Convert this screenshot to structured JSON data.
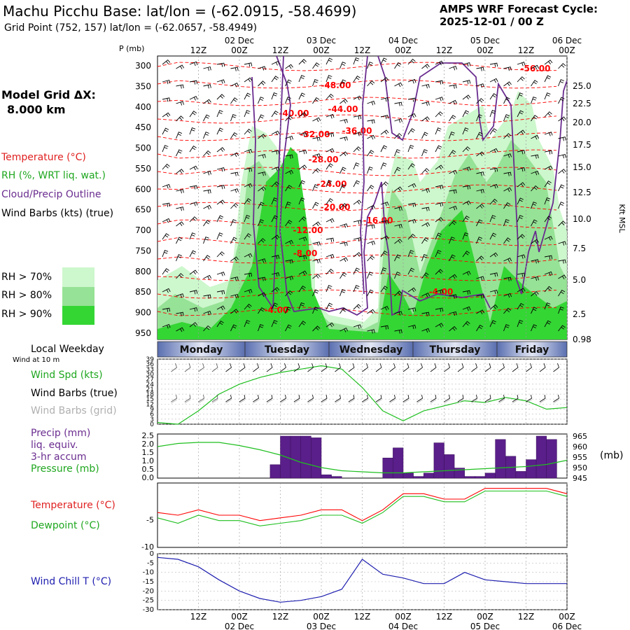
{
  "header": {
    "title": "Machu Picchu Base:  lat/lon = (-62.0915, -58.4699)",
    "grid_point": "Grid Point (752, 157) lat/lon = (-62.0657, -58.4949)",
    "cycle_label": "AMPS WRF Forecast Cycle:",
    "cycle_value": "2025-12-01 / 00  Z"
  },
  "left_panel": {
    "model_grid_label": "Model Grid ΔX:",
    "model_grid_value": "8.000 km",
    "temperature_label": "Temperature (°C)",
    "rh_label": "RH (%, WRT liq. wat.)",
    "cloud_label": "Cloud/Precip Outline",
    "wind_label": "Wind Barbs (kts) (true)",
    "rh_legend": [
      "RH > 70%",
      "RH > 80%",
      "RH > 90%"
    ],
    "local_weekday": "Local Weekday",
    "wind_at": "Wind at 10 m",
    "wind_spd_label": "Wind Spd (kts)",
    "wind_barbs_true": "Wind Barbs (true)",
    "wind_barbs_grid": "Wind Barbs (grid)",
    "precip_label": "Precip (mm)",
    "precip_sub1": "liq. equiv.",
    "precip_sub2": "3-hr accum",
    "pressure_label": "Pressure (mb)",
    "temp2_label": "Temperature (°C)",
    "dew_label": "Dewpoint (°C)",
    "windchill_label": "Wind Chill T (°C)"
  },
  "colors": {
    "rh70": "#cdf7cd",
    "rh80": "#96e296",
    "rh90": "#34d634",
    "temp": "#ff0000",
    "dew": "#1fbf1f",
    "cloud": "#6a2c8f",
    "precip": "#5a1f8a",
    "windchill": "#2020b0"
  },
  "chart_data": [
    {
      "type": "heatmap",
      "title": "Time-height cross section",
      "x_ticks_top": [
        "12Z",
        "00Z",
        "12Z",
        "00Z",
        "12Z",
        "00Z",
        "12Z",
        "00Z",
        "12Z",
        "00Z"
      ],
      "date_labels": [
        "02 Dec",
        "03 Dec",
        "04 Dec",
        "05 Dec",
        "06 Dec"
      ],
      "p_axis_label": "P (mb)",
      "p_ticks": [
        "300",
        "350",
        "400",
        "450",
        "500",
        "550",
        "600",
        "650",
        "700",
        "750",
        "800",
        "850",
        "900",
        "950"
      ],
      "kft_ticks": [
        "25.0",
        "22.5",
        "20.0",
        "17.5",
        "15.0",
        "12.5",
        "10.0",
        "7.5",
        "5.0",
        "2.5",
        "0.98"
      ],
      "kft_label": "Kft MSL",
      "isotherm_labels": [
        "-56.00",
        "-48.00",
        "-44.00",
        "-40.00",
        "-36.00",
        "-32.00",
        "-28.00",
        "-24.00",
        "-20.00",
        "-16.00",
        "-12.00",
        "-8.00",
        "-4.00",
        "-4.00"
      ]
    },
    {
      "type": "bar",
      "title": "Local Weekday",
      "categories": [
        "Monday",
        "Tuesday",
        "Wednesday",
        "Thursday",
        "Friday"
      ]
    },
    {
      "type": "line",
      "title": "Wind Spd (kts)",
      "y_ticks": [
        "39",
        "36",
        "33",
        "30",
        "27",
        "24",
        "21",
        "18",
        "15",
        "12",
        "9",
        "6",
        "3",
        "0"
      ],
      "ylim": [
        0,
        39
      ],
      "x_hours": [
        0,
        6,
        12,
        18,
        24,
        30,
        36,
        42,
        48,
        54,
        60,
        66,
        72,
        78,
        84,
        90,
        96,
        102,
        108,
        114,
        120
      ],
      "values": [
        1,
        0,
        8,
        18,
        24,
        28,
        31,
        33,
        35,
        33,
        22,
        8,
        2,
        8,
        11,
        14,
        13,
        16,
        14,
        9,
        10
      ]
    },
    {
      "type": "bar",
      "title": "Precip (mm) 3-hr accum / Pressure (mb)",
      "y_ticks": [
        "2.5",
        "2.0",
        "1.5",
        "1.0",
        "0.5",
        "0.0"
      ],
      "ylim": [
        0,
        2.5
      ],
      "y2_ticks": [
        "965",
        "960",
        "955",
        "950",
        "945"
      ],
      "y2lim": [
        945,
        965
      ],
      "y2_label": "(mb)",
      "precip_hours": [
        36,
        39,
        42,
        45,
        48,
        51,
        54,
        69,
        72,
        75,
        78,
        81,
        84,
        87,
        90,
        93,
        96,
        99,
        102,
        105,
        108,
        111,
        114,
        117
      ],
      "precip_values": [
        0.8,
        2.5,
        2.5,
        2.5,
        2.4,
        0.2,
        0.1,
        1.2,
        1.8,
        0.3,
        0.1,
        0.3,
        2.1,
        1.4,
        0.6,
        0.1,
        0.1,
        0.3,
        2.3,
        1.3,
        0.4,
        1.1,
        2.5,
        2.3
      ],
      "pressure_hours": [
        0,
        6,
        12,
        18,
        24,
        30,
        36,
        42,
        48,
        54,
        60,
        66,
        72,
        78,
        84,
        90,
        96,
        102,
        108,
        114,
        120
      ],
      "pressure_values": [
        960,
        961.5,
        962,
        962,
        960.5,
        958.5,
        956,
        952.5,
        950,
        948.5,
        948,
        947.5,
        947.5,
        948,
        948.5,
        949,
        949.5,
        950,
        950.5,
        951.5,
        953.5
      ]
    },
    {
      "type": "line",
      "title": "Temperature / Dewpoint (°C)",
      "y_ticks": [
        "-5",
        "-10"
      ],
      "ylim": [
        -10,
        2
      ],
      "x_hours": [
        0,
        6,
        12,
        18,
        24,
        30,
        36,
        42,
        48,
        54,
        60,
        66,
        72,
        78,
        84,
        90,
        96,
        102,
        108,
        114,
        120
      ],
      "temperature": [
        -3.5,
        -4,
        -3,
        -4,
        -4,
        -5,
        -4.5,
        -4,
        -3,
        -3,
        -5,
        -3,
        0,
        0,
        -1,
        -1,
        1,
        1,
        1,
        1,
        0
      ],
      "dewpoint": [
        -4.5,
        -5.5,
        -4,
        -5,
        -5,
        -6,
        -5.5,
        -5,
        -4,
        -4,
        -5.5,
        -3.5,
        -0.5,
        -0.5,
        -1.5,
        -1.5,
        0.5,
        0.5,
        0.5,
        0.5,
        -0.5
      ]
    },
    {
      "type": "line",
      "title": "Wind Chill T (°C)",
      "y_ticks": [
        "0",
        "-5",
        "-10",
        "-15",
        "-20",
        "-25",
        "-30"
      ],
      "ylim": [
        -30,
        0
      ],
      "x_hours": [
        0,
        6,
        12,
        18,
        24,
        30,
        36,
        42,
        48,
        54,
        60,
        66,
        72,
        78,
        84,
        90,
        96,
        102,
        108,
        114,
        120
      ],
      "values": [
        -2,
        -3,
        -7,
        -14,
        -20,
        -24,
        -26,
        -25,
        -23,
        -19,
        -3,
        -11,
        -13,
        -16,
        -16,
        -10,
        -14,
        -15,
        -16,
        -16,
        -16
      ],
      "x_ticks_bottom": [
        "12Z",
        "00Z",
        "12Z",
        "00Z",
        "12Z",
        "00Z",
        "12Z",
        "00Z",
        "12Z",
        "00Z"
      ]
    }
  ]
}
